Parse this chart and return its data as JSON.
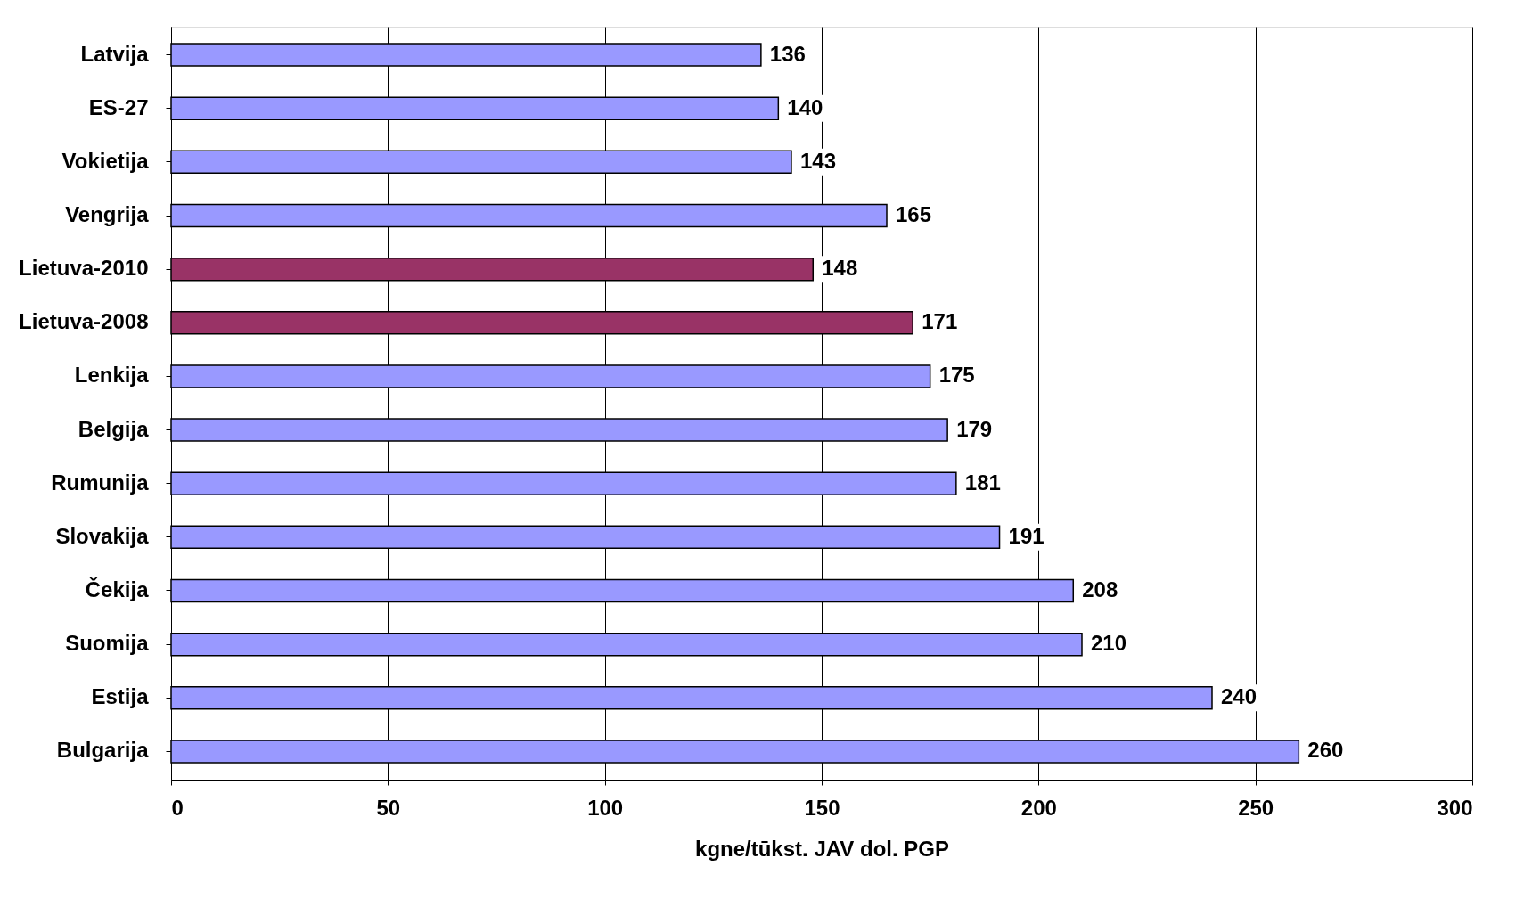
{
  "chart_data": {
    "type": "bar",
    "orientation": "horizontal",
    "xlabel": "kgne/tūkst. JAV dol. PGP",
    "categories": [
      "Latvija",
      "ES-27",
      "Vokietija",
      "Vengrija",
      "Lietuva-2010",
      "Lietuva-2008",
      "Lenkija",
      "Belgija",
      "Rumunija",
      "Slovakija",
      "Čekija",
      "Suomija",
      "Estija",
      "Bulgarija"
    ],
    "values": [
      136,
      140,
      143,
      165,
      148,
      171,
      175,
      179,
      181,
      191,
      208,
      210,
      240,
      260
    ],
    "colors": [
      "#9999ff",
      "#9999ff",
      "#9999ff",
      "#9999ff",
      "#993366",
      "#993366",
      "#9999ff",
      "#9999ff",
      "#9999ff",
      "#9999ff",
      "#9999ff",
      "#9999ff",
      "#9999ff",
      "#9999ff"
    ],
    "xlim": [
      0,
      300
    ],
    "xticks": [
      0,
      50,
      100,
      150,
      200,
      250,
      300
    ],
    "grid": "x",
    "data_labels": true
  }
}
